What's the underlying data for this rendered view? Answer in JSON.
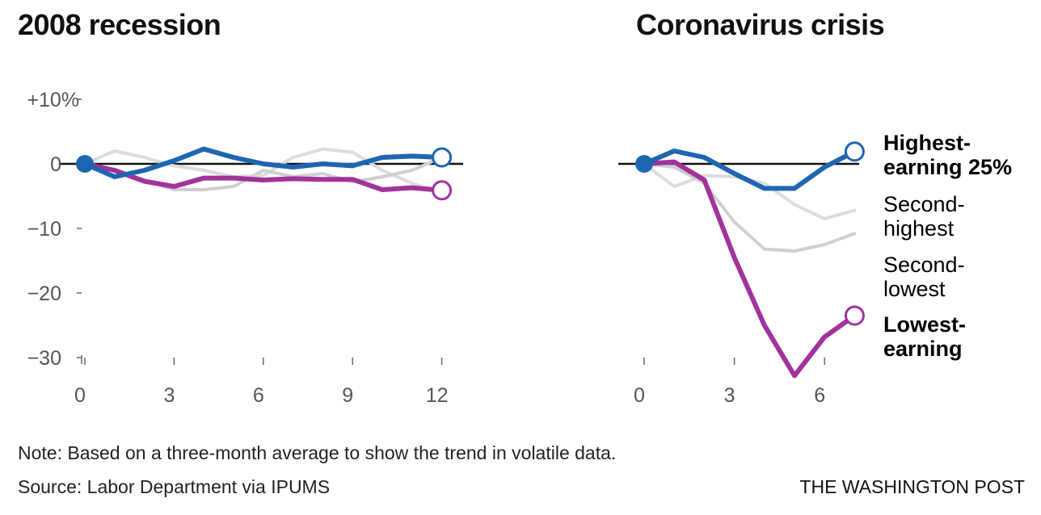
{
  "chart_data": [
    {
      "type": "line",
      "title": "2008 recession",
      "xlabel": "",
      "ylabel": "",
      "x": [
        0,
        1,
        2,
        3,
        4,
        5,
        6,
        7,
        8,
        9,
        10,
        11,
        12
      ],
      "xticks": [
        0,
        3,
        6,
        9,
        12
      ],
      "xtick_labels": [
        "0",
        "3",
        "6",
        "9",
        "12"
      ],
      "yticks": [
        10,
        0,
        -10,
        -20,
        -30
      ],
      "ytick_labels": [
        "+10%",
        "0",
        "−10",
        "−20",
        "−30"
      ],
      "xlim": [
        0,
        12
      ],
      "ylim": [
        -30,
        10
      ],
      "grid": false,
      "series": [
        {
          "name": "Second-highest",
          "color": "#dcdcdc",
          "values": [
            0,
            2,
            1,
            -0.3,
            -1,
            -2,
            -1.8,
            1,
            2.3,
            1.8,
            -1,
            -3,
            -4.5
          ]
        },
        {
          "name": "Second-lowest",
          "color": "#cfcfcf",
          "values": [
            0,
            -1,
            -2.5,
            -4,
            -4,
            -3.5,
            -1,
            -2,
            -1.5,
            -2.8,
            -2,
            -1,
            1
          ]
        },
        {
          "name": "Lowest-earning",
          "color": "#a1339b",
          "values": [
            0,
            -1,
            -2.7,
            -3.5,
            -2.2,
            -2.2,
            -2.5,
            -2.3,
            -2.4,
            -2.4,
            -4,
            -3.7,
            -4.1
          ]
        },
        {
          "name": "Highest-earning 25%",
          "color": "#1f66b1",
          "values": [
            0,
            -2,
            -1,
            0.5,
            2.3,
            1,
            0,
            -0.5,
            0,
            -0.3,
            1,
            1.2,
            1
          ]
        }
      ]
    },
    {
      "type": "line",
      "title": "Coronavirus crisis",
      "xlabel": "",
      "ylabel": "",
      "x": [
        0,
        1,
        2,
        3,
        4,
        5,
        6,
        7
      ],
      "xticks": [
        0,
        3,
        6
      ],
      "xtick_labels": [
        "0",
        "3",
        "6"
      ],
      "xlim": [
        0,
        7
      ],
      "ylim": [
        -30,
        10
      ],
      "grid": false,
      "series": [
        {
          "name": "Second-highest",
          "color": "#dcdcdc",
          "values": [
            0,
            -3.5,
            -1.8,
            -2,
            -3,
            -6.3,
            -8.5,
            -7.2
          ]
        },
        {
          "name": "Second-lowest",
          "color": "#cfcfcf",
          "values": [
            0,
            -0.5,
            -3,
            -9,
            -13.2,
            -13.5,
            -12.5,
            -10.8
          ]
        },
        {
          "name": "Lowest-earning",
          "color": "#a1339b",
          "values": [
            0,
            0.3,
            -2.5,
            -14.5,
            -25,
            -32.8,
            -26.8,
            -23.5
          ]
        },
        {
          "name": "Highest-earning 25%",
          "color": "#1f66b1",
          "values": [
            0,
            2,
            1,
            -1.5,
            -3.8,
            -3.8,
            -0.5,
            1.9
          ]
        }
      ],
      "annotations": [
        {
          "text_lines": [
            "Highest-",
            "earning 25%"
          ],
          "color": "#1f66b1",
          "bold": true
        },
        {
          "text_lines": [
            "Second-",
            "highest"
          ],
          "color": "#dedede",
          "bold": false
        },
        {
          "text_lines": [
            "Second-",
            "lowest"
          ],
          "color": "#c8c8c8",
          "bold": false
        },
        {
          "text_lines": [
            "Lowest-",
            "earning"
          ],
          "color": "#a1339b",
          "bold": true
        }
      ]
    }
  ],
  "titles": {
    "left": "2008 recession",
    "right": "Coronavirus crisis"
  },
  "footer": {
    "note": "Note: Based on a three-month average to show the trend in volatile data.",
    "source": "Source: Labor Department via IPUMS",
    "credit": "THE WASHINGTON POST"
  },
  "colors": {
    "highest": "#1f66b1",
    "lowest": "#a1339b",
    "axis": "#111111",
    "tick_text": "#555555"
  }
}
